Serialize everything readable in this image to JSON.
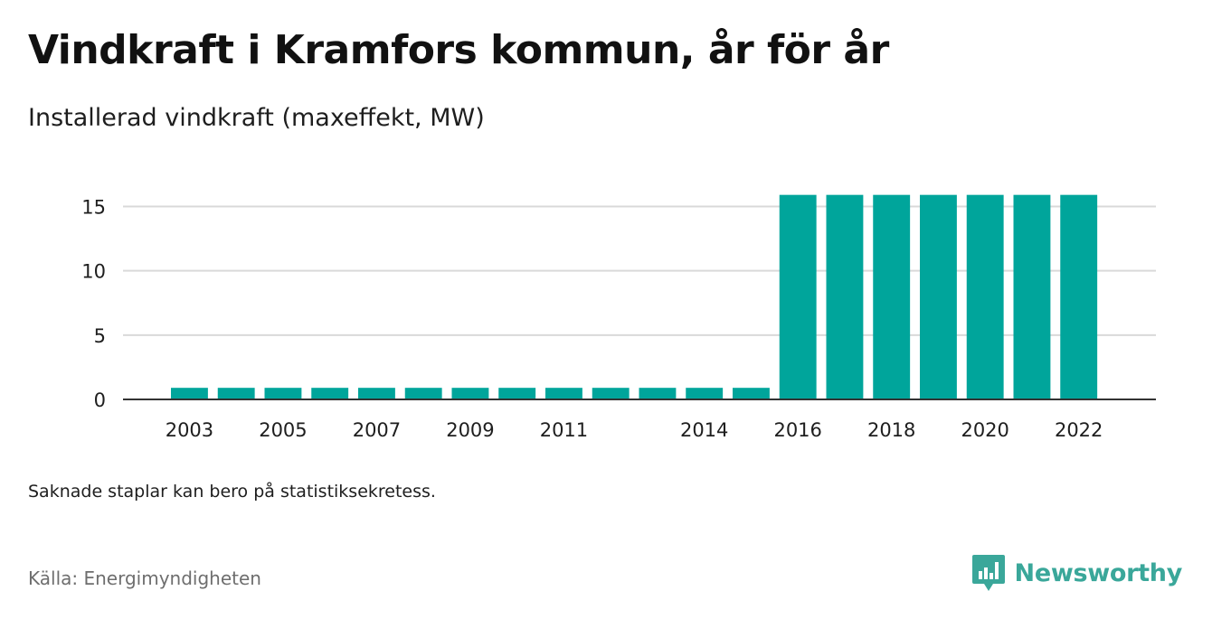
{
  "title": "Vindkraft i Kramfors kommun, år för år",
  "subtitle": "Installerad vindkraft (maxeffekt, MW)",
  "note": "Saknade staplar kan bero på statistiksekretess.",
  "source": "Källa: Energimyndigheten",
  "brand": {
    "name": "Newsworthy",
    "icon": "newsworthy-logo-icon",
    "color": "#3aa79a"
  },
  "colors": {
    "bar": "#00a59b",
    "grid": "#d9d9d9",
    "axis": "#333333",
    "text": "#1e1e1e"
  },
  "chart_data": {
    "type": "bar",
    "title": "Installerad vindkraft (maxeffekt, MW)",
    "xlabel": "",
    "ylabel": "",
    "categories": [
      "2003",
      "2004",
      "2005",
      "2006",
      "2007",
      "2008",
      "2009",
      "2010",
      "2011",
      "2012",
      "2013",
      "2014",
      "2015",
      "2016",
      "2017",
      "2018",
      "2019",
      "2020",
      "2021",
      "2022"
    ],
    "values": [
      0.9,
      0.9,
      0.9,
      0.9,
      0.9,
      0.9,
      0.9,
      0.9,
      0.9,
      0.9,
      0.9,
      0.9,
      0.9,
      15.9,
      15.9,
      15.9,
      15.9,
      15.9,
      15.9,
      15.9
    ],
    "xtick_labels": [
      "2003",
      "",
      "2005",
      "",
      "2007",
      "",
      "2009",
      "",
      "2011",
      "",
      "",
      "2014",
      "",
      "2016",
      "",
      "2018",
      "",
      "2020",
      "",
      "2022"
    ],
    "yticks": [
      0,
      5,
      10,
      15
    ],
    "ylim": [
      0,
      17
    ],
    "grid": true,
    "legend": false
  }
}
